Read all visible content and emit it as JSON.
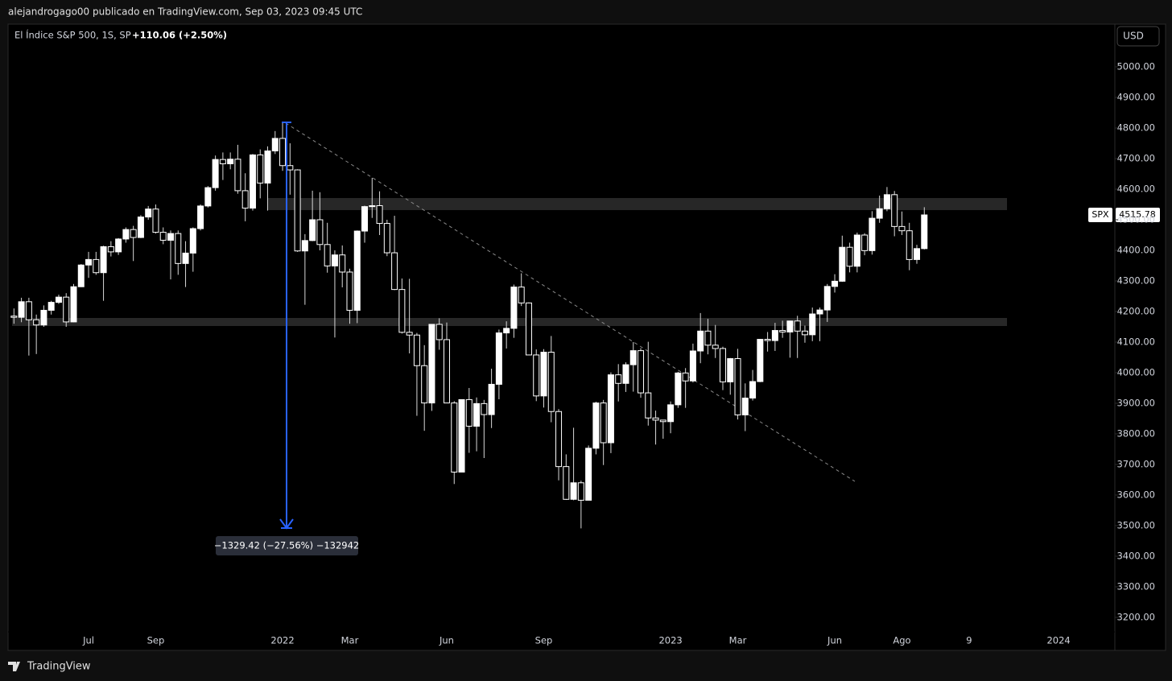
{
  "header": {
    "publisher": "alejandrogago00 publicado en TradingView.com, Sep 03, 2023 09:45 UTC",
    "brand": "TradingView"
  },
  "chart_data": {
    "type": "candlestick",
    "symbol_title": "El Índice S&P 500, 1S, SP",
    "change": "+110.06 (+2.50%)",
    "currency": "USD",
    "symbol": "SPX",
    "measure_label": "−1329.42 (−27.56%) −132942",
    "grid": false,
    "up_color": "#ffffff",
    "down_color": "#000000",
    "wick_color": "#d8d8d8",
    "categories": [
      null,
      null,
      null,
      null,
      null,
      null,
      null,
      null,
      null,
      null,
      "Jul",
      null,
      null,
      null,
      null,
      null,
      null,
      null,
      null,
      "Sep",
      null,
      null,
      null,
      null,
      null,
      null,
      null,
      null,
      null,
      null,
      null,
      null,
      null,
      null,
      null,
      null,
      "2022",
      null,
      null,
      null,
      null,
      null,
      null,
      null,
      null,
      "Mar",
      null,
      null,
      null,
      null,
      null,
      null,
      null,
      null,
      null,
      null,
      null,
      null,
      "Jun",
      null,
      null,
      null,
      null,
      null,
      null,
      null,
      null,
      null,
      null,
      null,
      null,
      "Sep",
      null,
      null,
      null,
      null,
      null,
      null,
      null,
      null,
      null,
      null,
      null,
      null,
      null,
      null,
      null,
      null,
      "2023",
      null,
      null,
      null,
      null,
      null,
      null,
      null,
      null,
      "Mar",
      null,
      null,
      null,
      null,
      null,
      null,
      null,
      null,
      null,
      null,
      null,
      null,
      "Jun",
      null,
      null,
      null,
      null,
      null,
      null,
      null,
      null,
      "Ago",
      null,
      null,
      null,
      null,
      null,
      null,
      null,
      null,
      "9",
      null,
      null,
      null,
      null,
      null,
      null,
      null,
      null,
      null,
      null,
      null,
      "2024"
    ],
    "open": [
      4185,
      4181,
      4232,
      4173,
      4156,
      4204,
      4230,
      4247,
      4166,
      4281,
      4352,
      4370,
      4327,
      4412,
      4395,
      4437,
      4468,
      4442,
      4509,
      4535,
      4459,
      4433,
      4455,
      4357,
      4391,
      4471,
      4545,
      4605,
      4697,
      4683,
      4698,
      4595,
      4538,
      4712,
      4620,
      4725,
      4766,
      4677,
      4663,
      4398,
      4432,
      4500,
      4419,
      4349,
      4385,
      4329,
      4204,
      4463,
      4543,
      4546,
      4488,
      4392,
      4272,
      4132,
      4123,
      4023,
      3901,
      4158,
      4108,
      3901,
      3675,
      3912,
      3825,
      3899,
      3863,
      3962,
      4130,
      4145,
      4280,
      4228,
      4058,
      3924,
      4067,
      3873,
      3693,
      3586,
      3640,
      3583,
      3753,
      3901,
      3771,
      3993,
      3965,
      4026,
      4072,
      3934,
      3852,
      3845,
      3840,
      3895,
      3999,
      3973,
      4071,
      4136,
      4090,
      4079,
      3970,
      4046,
      3862,
      3917,
      3971,
      4109,
      4105,
      4138,
      4133,
      4169,
      4136,
      4124,
      4192,
      4205,
      4282,
      4299,
      4410,
      4348,
      4450,
      4399,
      4505,
      4536,
      4582,
      4478,
      4464,
      4370,
      4405.72,
      null,
      null,
      null,
      null,
      null,
      null,
      null,
      null,
      null,
      null,
      null,
      null,
      null,
      null,
      null,
      null,
      null,
      null
    ],
    "high": [
      4210,
      4245,
      4245,
      4190,
      4220,
      4235,
      4255,
      4260,
      4290,
      4355,
      4395,
      4395,
      4415,
      4430,
      4440,
      4475,
      4480,
      4515,
      4545,
      4550,
      4475,
      4465,
      4465,
      4430,
      4475,
      4550,
      4610,
      4710,
      4720,
      4720,
      4745,
      4652,
      4715,
      4730,
      4740,
      4790,
      4818,
      4750,
      4665,
      4453,
      4595,
      4590,
      4490,
      4400,
      4416,
      4340,
      4465,
      4546,
      4637,
      4593,
      4500,
      4513,
      4308,
      4307,
      4130,
      4090,
      4158,
      4178,
      4164,
      3907,
      3913,
      3950,
      3919,
      3911,
      4013,
      4141,
      4168,
      4288,
      4325,
      4230,
      4076,
      4077,
      4120,
      3881,
      3733,
      3820,
      3647,
      3762,
      3905,
      3911,
      4001,
      4028,
      4034,
      4100,
      4080,
      4101,
      3876,
      3846,
      3906,
      4003,
      4015,
      4095,
      4195,
      4176,
      4156,
      4085,
      4048,
      4078,
      3965,
      4009,
      4110,
      4133,
      4163,
      4170,
      4170,
      4186,
      4154,
      4213,
      4213,
      4290,
      4322,
      4448,
      4425,
      4458,
      4456,
      4528,
      4579,
      4607,
      4594,
      4527,
      4490,
      4418,
      4541,
      null,
      null,
      null,
      null,
      null,
      null,
      null,
      null,
      null,
      null,
      null,
      null,
      null,
      null,
      null,
      null,
      null,
      null
    ],
    "low": [
      4160,
      4165,
      4056,
      4061,
      4150,
      4190,
      4225,
      4150,
      4165,
      4280,
      4310,
      4320,
      4235,
      4380,
      4385,
      4425,
      4365,
      4440,
      4500,
      4455,
      4420,
      4305,
      4320,
      4280,
      4330,
      4465,
      4540,
      4595,
      4630,
      4665,
      4585,
      4495,
      4530,
      4570,
      4530,
      4715,
      4660,
      4582,
      4395,
      4222,
      4430,
      4400,
      4327,
      4115,
      4279,
      4160,
      4162,
      4425,
      4506,
      4450,
      4381,
      4270,
      4128,
      4063,
      3859,
      3810,
      3875,
      4075,
      3900,
      3636,
      3675,
      3738,
      3743,
      3721,
      3819,
      3913,
      4079,
      4114,
      4218,
      4058,
      3907,
      3886,
      3838,
      3648,
      3584,
      3583,
      3491,
      3590,
      3733,
      3698,
      3737,
      3906,
      3937,
      3938,
      3918,
      3827,
      3765,
      3784,
      3802,
      3885,
      3885,
      3968,
      4031,
      4060,
      4048,
      3943,
      3928,
      3847,
      3809,
      3909,
      3969,
      4069,
      4071,
      4114,
      4049,
      4048,
      4098,
      4103,
      4103,
      4166,
      4262,
      4297,
      4328,
      4328,
      4384,
      4386,
      4490,
      4528,
      4446,
      4450,
      4335,
      4356,
      4403,
      null,
      null,
      null,
      null,
      null,
      null,
      null,
      null,
      null,
      null,
      null,
      null,
      null,
      null,
      null,
      null,
      null,
      null
    ],
    "close": [
      4181,
      4232,
      4173,
      4156,
      4204,
      4230,
      4247,
      4166,
      4281,
      4352,
      4370,
      4327,
      4412,
      4395,
      4437,
      4468,
      4442,
      4509,
      4535,
      4459,
      4433,
      4455,
      4357,
      4391,
      4471,
      4545,
      4605,
      4697,
      4683,
      4698,
      4595,
      4538,
      4712,
      4620,
      4725,
      4766,
      4677,
      4663,
      4398,
      4432,
      4500,
      4419,
      4349,
      4385,
      4329,
      4204,
      4463,
      4543,
      4546,
      4488,
      4392,
      4272,
      4132,
      4123,
      4023,
      3901,
      4158,
      4108,
      3901,
      3675,
      3912,
      3825,
      3899,
      3863,
      3962,
      4130,
      4145,
      4280,
      4228,
      4058,
      3924,
      4067,
      3873,
      3693,
      3586,
      3640,
      3583,
      3753,
      3901,
      3771,
      3993,
      3965,
      4026,
      4072,
      3934,
      3852,
      3845,
      3840,
      3895,
      3999,
      3973,
      4071,
      4136,
      4090,
      4079,
      3970,
      4046,
      3862,
      3917,
      3971,
      4109,
      4105,
      4138,
      4133,
      4169,
      4136,
      4124,
      4192,
      4205,
      4282,
      4299,
      4410,
      4348,
      4450,
      4399,
      4505,
      4536,
      4582,
      4478,
      4464,
      4370,
      4405.72,
      4515.78,
      null,
      null,
      null,
      null,
      null,
      null,
      null,
      null,
      null,
      null,
      null,
      null,
      null,
      null,
      null,
      null,
      null,
      null
    ],
    "ylim": [
      3092,
      5139.5
    ],
    "yticks": [
      {
        "value": 3200,
        "label": "3200.00"
      },
      {
        "value": 3300,
        "label": "3300.00"
      },
      {
        "value": 3400,
        "label": "3400.00"
      },
      {
        "value": 3500,
        "label": "3500.00"
      },
      {
        "value": 3600,
        "label": "3600.00"
      },
      {
        "value": 3700,
        "label": "3700.00"
      },
      {
        "value": 3800,
        "label": "3800.00"
      },
      {
        "value": 3900,
        "label": "3900.00"
      },
      {
        "value": 4000,
        "label": "4000.00"
      },
      {
        "value": 4100,
        "label": "4100.00"
      },
      {
        "value": 4200,
        "label": "4200.00"
      },
      {
        "value": 4300,
        "label": "4300.00"
      },
      {
        "value": 4400,
        "label": "4400.00"
      },
      {
        "value": 4500,
        "label": "4500.00"
      },
      {
        "value": 4600,
        "label": "4600.00"
      },
      {
        "value": 4700,
        "label": "4700.00"
      },
      {
        "value": 4800,
        "label": "4800.00"
      },
      {
        "value": 4900,
        "label": "4900.00"
      },
      {
        "value": 5000,
        "label": "5000.00"
      }
    ]
  }
}
